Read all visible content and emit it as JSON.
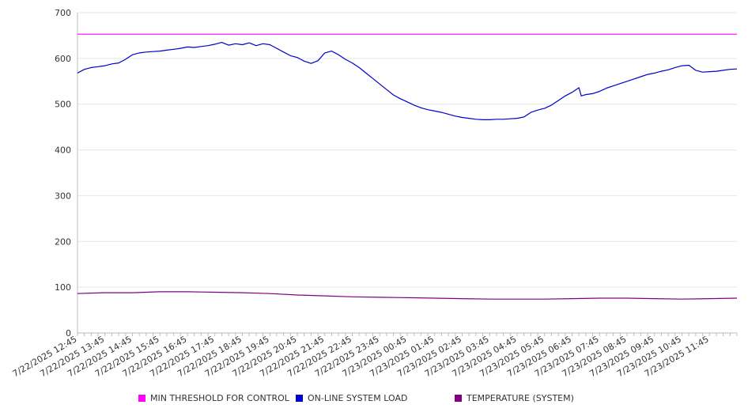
{
  "chart_data": {
    "type": "line",
    "title": "",
    "xlabel": "",
    "ylabel": "",
    "ylim": [
      0,
      700
    ],
    "yticks": [
      0,
      100,
      200,
      300,
      400,
      500,
      600,
      700
    ],
    "grid": "horizontal",
    "legend_position": "bottom",
    "x_tick_labels": [
      "7/22/2025 12:45",
      "7/22/2025 13:45",
      "7/22/2025 14:45",
      "7/22/2025 15:45",
      "7/22/2025 16:45",
      "7/22/2025 17:45",
      "7/22/2025 18:45",
      "7/22/2025 19:45",
      "7/22/2025 20:45",
      "7/22/2025 21:45",
      "7/22/2025 22:45",
      "7/22/2025 23:45",
      "7/23/2025 00:45",
      "7/23/2025 01:45",
      "7/23/2025 02:45",
      "7/23/2025 03:45",
      "7/23/2025 04:45",
      "7/23/2025 05:45",
      "7/23/2025 06:45",
      "7/23/2025 07:45",
      "7/23/2025 08:45",
      "7/23/2025 09:45",
      "7/23/2025 10:45",
      "7/23/2025 11:45"
    ],
    "x_start": "7/22/2025 12:45",
    "x_end": "7/23/2025 12:45",
    "series": [
      {
        "name": "MIN THRESHOLD FOR CONTROL",
        "color": "#ff00ff",
        "points": [
          [
            "7/22/2025 12:45",
            653
          ],
          [
            "7/23/2025 12:45",
            653
          ]
        ]
      },
      {
        "name": "ON-LINE SYSTEM LOAD",
        "color": "#0000cc",
        "points": [
          [
            "7/22/2025 12:45",
            568
          ],
          [
            "7/22/2025 13:00",
            576
          ],
          [
            "7/22/2025 13:15",
            580
          ],
          [
            "7/22/2025 13:30",
            582
          ],
          [
            "7/22/2025 13:45",
            584
          ],
          [
            "7/22/2025 14:00",
            588
          ],
          [
            "7/22/2025 14:15",
            590
          ],
          [
            "7/22/2025 14:30",
            598
          ],
          [
            "7/22/2025 14:45",
            608
          ],
          [
            "7/22/2025 15:00",
            612
          ],
          [
            "7/22/2025 15:15",
            614
          ],
          [
            "7/22/2025 15:30",
            615
          ],
          [
            "7/22/2025 15:45",
            616
          ],
          [
            "7/22/2025 16:00",
            618
          ],
          [
            "7/22/2025 16:15",
            620
          ],
          [
            "7/22/2025 16:30",
            622
          ],
          [
            "7/22/2025 16:45",
            625
          ],
          [
            "7/22/2025 17:00",
            624
          ],
          [
            "7/22/2025 17:15",
            626
          ],
          [
            "7/22/2025 17:30",
            628
          ],
          [
            "7/22/2025 17:45",
            631
          ],
          [
            "7/22/2025 18:00",
            635
          ],
          [
            "7/22/2025 18:15",
            629
          ],
          [
            "7/22/2025 18:30",
            632
          ],
          [
            "7/22/2025 18:45",
            630
          ],
          [
            "7/22/2025 19:00",
            634
          ],
          [
            "7/22/2025 19:15",
            628
          ],
          [
            "7/22/2025 19:30",
            632
          ],
          [
            "7/22/2025 19:45",
            630
          ],
          [
            "7/22/2025 20:00",
            622
          ],
          [
            "7/22/2025 20:15",
            614
          ],
          [
            "7/22/2025 20:30",
            606
          ],
          [
            "7/22/2025 20:45",
            602
          ],
          [
            "7/22/2025 21:00",
            594
          ],
          [
            "7/22/2025 21:15",
            589
          ],
          [
            "7/22/2025 21:30",
            595
          ],
          [
            "7/22/2025 21:45",
            612
          ],
          [
            "7/22/2025 22:00",
            616
          ],
          [
            "7/22/2025 22:15",
            608
          ],
          [
            "7/22/2025 22:30",
            598
          ],
          [
            "7/22/2025 22:45",
            590
          ],
          [
            "7/22/2025 23:00",
            580
          ],
          [
            "7/22/2025 23:15",
            568
          ],
          [
            "7/22/2025 23:30",
            556
          ],
          [
            "7/22/2025 23:45",
            544
          ],
          [
            "7/23/2025 00:00",
            532
          ],
          [
            "7/23/2025 00:15",
            520
          ],
          [
            "7/23/2025 00:30",
            512
          ],
          [
            "7/23/2025 00:45",
            505
          ],
          [
            "7/23/2025 01:00",
            498
          ],
          [
            "7/23/2025 01:15",
            492
          ],
          [
            "7/23/2025 01:30",
            488
          ],
          [
            "7/23/2025 01:45",
            485
          ],
          [
            "7/23/2025 02:00",
            482
          ],
          [
            "7/23/2025 02:15",
            478
          ],
          [
            "7/23/2025 02:30",
            474
          ],
          [
            "7/23/2025 02:45",
            471
          ],
          [
            "7/23/2025 03:00",
            469
          ],
          [
            "7/23/2025 03:15",
            467
          ],
          [
            "7/23/2025 03:30",
            466
          ],
          [
            "7/23/2025 03:45",
            466
          ],
          [
            "7/23/2025 04:00",
            467
          ],
          [
            "7/23/2025 04:15",
            467
          ],
          [
            "7/23/2025 04:30",
            468
          ],
          [
            "7/23/2025 04:45",
            469
          ],
          [
            "7/23/2025 05:00",
            472
          ],
          [
            "7/23/2025 05:15",
            482
          ],
          [
            "7/23/2025 05:30",
            487
          ],
          [
            "7/23/2025 05:45",
            491
          ],
          [
            "7/23/2025 06:00",
            498
          ],
          [
            "7/23/2025 06:15",
            508
          ],
          [
            "7/23/2025 06:30",
            518
          ],
          [
            "7/23/2025 06:45",
            526
          ],
          [
            "7/23/2025 07:00",
            536
          ],
          [
            "7/23/2025 07:05",
            518
          ],
          [
            "7/23/2025 07:15",
            521
          ],
          [
            "7/23/2025 07:30",
            523
          ],
          [
            "7/23/2025 07:45",
            528
          ],
          [
            "7/23/2025 08:00",
            535
          ],
          [
            "7/23/2025 08:15",
            540
          ],
          [
            "7/23/2025 08:30",
            545
          ],
          [
            "7/23/2025 08:45",
            550
          ],
          [
            "7/23/2025 09:00",
            555
          ],
          [
            "7/23/2025 09:15",
            560
          ],
          [
            "7/23/2025 09:30",
            565
          ],
          [
            "7/23/2025 09:45",
            568
          ],
          [
            "7/23/2025 10:00",
            572
          ],
          [
            "7/23/2025 10:15",
            575
          ],
          [
            "7/23/2025 10:30",
            580
          ],
          [
            "7/23/2025 10:45",
            584
          ],
          [
            "7/23/2025 11:00",
            585
          ],
          [
            "7/23/2025 11:15",
            574
          ],
          [
            "7/23/2025 11:30",
            570
          ],
          [
            "7/23/2025 11:45",
            571
          ],
          [
            "7/23/2025 12:00",
            572
          ],
          [
            "7/23/2025 12:15",
            574
          ],
          [
            "7/23/2025 12:30",
            576
          ],
          [
            "7/23/2025 12:45",
            577
          ]
        ]
      },
      {
        "name": "TEMPERATURE (SYSTEM)",
        "color": "#800080",
        "points": [
          [
            "7/22/2025 12:45",
            86
          ],
          [
            "7/22/2025 13:45",
            88
          ],
          [
            "7/22/2025 14:45",
            88
          ],
          [
            "7/22/2025 15:45",
            90
          ],
          [
            "7/22/2025 16:45",
            90
          ],
          [
            "7/22/2025 17:45",
            89
          ],
          [
            "7/22/2025 18:45",
            88
          ],
          [
            "7/22/2025 19:45",
            86
          ],
          [
            "7/22/2025 20:45",
            83
          ],
          [
            "7/22/2025 21:45",
            81
          ],
          [
            "7/22/2025 22:45",
            79
          ],
          [
            "7/22/2025 23:45",
            78
          ],
          [
            "7/23/2025 00:45",
            77
          ],
          [
            "7/23/2025 01:45",
            76
          ],
          [
            "7/23/2025 02:45",
            75
          ],
          [
            "7/23/2025 03:45",
            74
          ],
          [
            "7/23/2025 04:45",
            74
          ],
          [
            "7/23/2025 05:45",
            74
          ],
          [
            "7/23/2025 06:45",
            75
          ],
          [
            "7/23/2025 07:45",
            76
          ],
          [
            "7/23/2025 08:45",
            76
          ],
          [
            "7/23/2025 09:45",
            75
          ],
          [
            "7/23/2025 10:45",
            74
          ],
          [
            "7/23/2025 11:45",
            75
          ],
          [
            "7/23/2025 12:45",
            76
          ]
        ]
      }
    ]
  }
}
